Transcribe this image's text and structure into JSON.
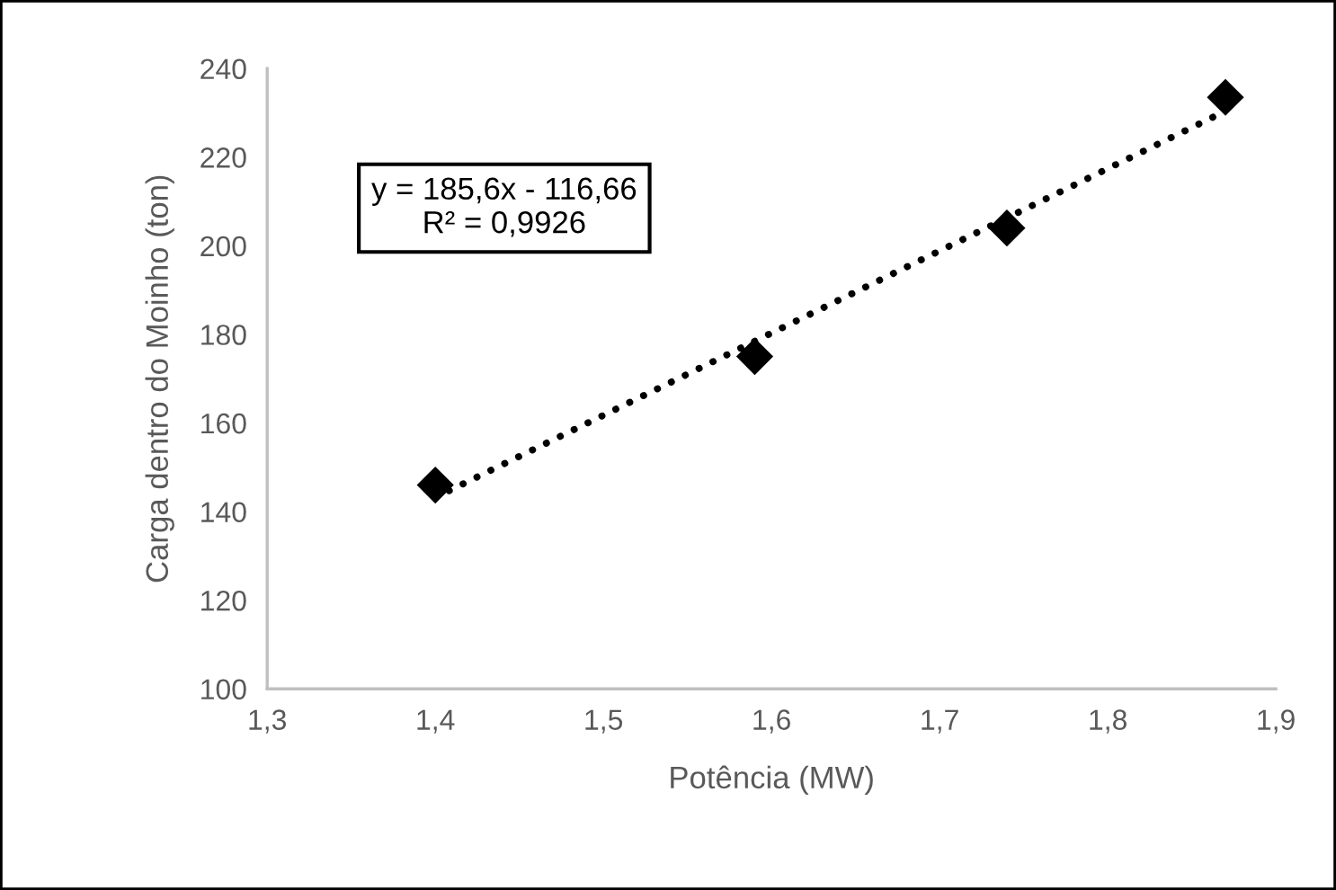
{
  "chart_data": {
    "type": "scatter",
    "xlabel": "Potência (MW)",
    "ylabel": "Carga dentro do Moinho (ton)",
    "x": [
      1.4,
      1.59,
      1.74,
      1.87
    ],
    "series": [
      {
        "color": "#000000",
        "marker": "diamond",
        "values": [
          146,
          175,
          204,
          233.5
        ]
      },
      {
        "type": "line",
        "color": "#000000",
        "line_style": "dotted",
        "x": [
          1.4,
          1.87
        ],
        "values": [
          143.2,
          230.4
        ]
      }
    ],
    "annotations": [
      "y = 185,6x - 116,66\nR² = 0,9926"
    ],
    "xlim": [
      1.3,
      1.9
    ],
    "xticks": [
      {
        "value": 1.3,
        "label": "1,3"
      },
      {
        "value": 1.4,
        "label": "1,4"
      },
      {
        "value": 1.5,
        "label": "1,5"
      },
      {
        "value": 1.6,
        "label": "1,6"
      },
      {
        "value": 1.7,
        "label": "1,7"
      },
      {
        "value": 1.8,
        "label": "1,8"
      },
      {
        "value": 1.9,
        "label": "1,9"
      }
    ],
    "ylim": [
      100,
      240
    ],
    "yticks": [
      100,
      120,
      140,
      160,
      180,
      200,
      220,
      240
    ],
    "grid": false,
    "legend": false
  }
}
